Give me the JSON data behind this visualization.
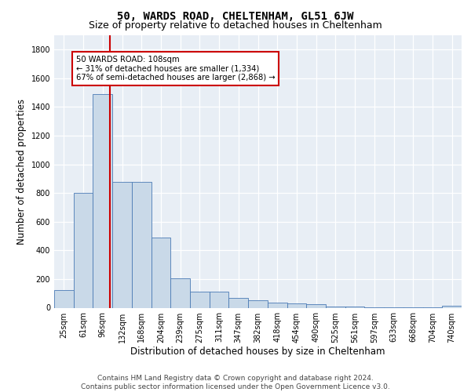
{
  "title": "50, WARDS ROAD, CHELTENHAM, GL51 6JW",
  "subtitle": "Size of property relative to detached houses in Cheltenham",
  "xlabel": "Distribution of detached houses by size in Cheltenham",
  "ylabel": "Number of detached properties",
  "categories": [
    "25sqm",
    "61sqm",
    "96sqm",
    "132sqm",
    "168sqm",
    "204sqm",
    "239sqm",
    "275sqm",
    "311sqm",
    "347sqm",
    "382sqm",
    "418sqm",
    "454sqm",
    "490sqm",
    "525sqm",
    "561sqm",
    "597sqm",
    "633sqm",
    "668sqm",
    "704sqm",
    "740sqm"
  ],
  "values": [
    125,
    800,
    1490,
    880,
    880,
    490,
    205,
    110,
    110,
    70,
    50,
    35,
    30,
    25,
    10,
    8,
    5,
    3,
    2,
    2,
    15
  ],
  "bar_color": "#c9d9e8",
  "bar_edge_color": "#4a7ab5",
  "redline_index": 2,
  "annotation_text": "50 WARDS ROAD: 108sqm\n← 31% of detached houses are smaller (1,334)\n67% of semi-detached houses are larger (2,868) →",
  "annotation_box_color": "#ffffff",
  "annotation_box_edge": "#cc0000",
  "redline_color": "#cc0000",
  "background_color": "#e8eef5",
  "ylim": [
    0,
    1900
  ],
  "yticks": [
    0,
    200,
    400,
    600,
    800,
    1000,
    1200,
    1400,
    1600,
    1800
  ],
  "footer": "Contains HM Land Registry data © Crown copyright and database right 2024.\nContains public sector information licensed under the Open Government Licence v3.0.",
  "title_fontsize": 10,
  "subtitle_fontsize": 9,
  "xlabel_fontsize": 8.5,
  "ylabel_fontsize": 8.5,
  "tick_fontsize": 7,
  "footer_fontsize": 6.5
}
